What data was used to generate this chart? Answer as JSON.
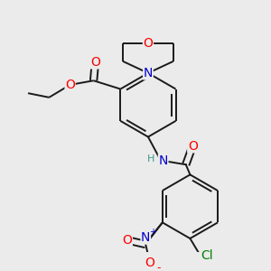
{
  "bg_color": "#ebebeb",
  "bond_color": "#1a1a1a",
  "atom_colors": {
    "O": "#ff0000",
    "N": "#0000cc",
    "Cl": "#008000",
    "H": "#3a9a8a",
    "C": "#1a1a1a"
  },
  "font_size": 9
}
